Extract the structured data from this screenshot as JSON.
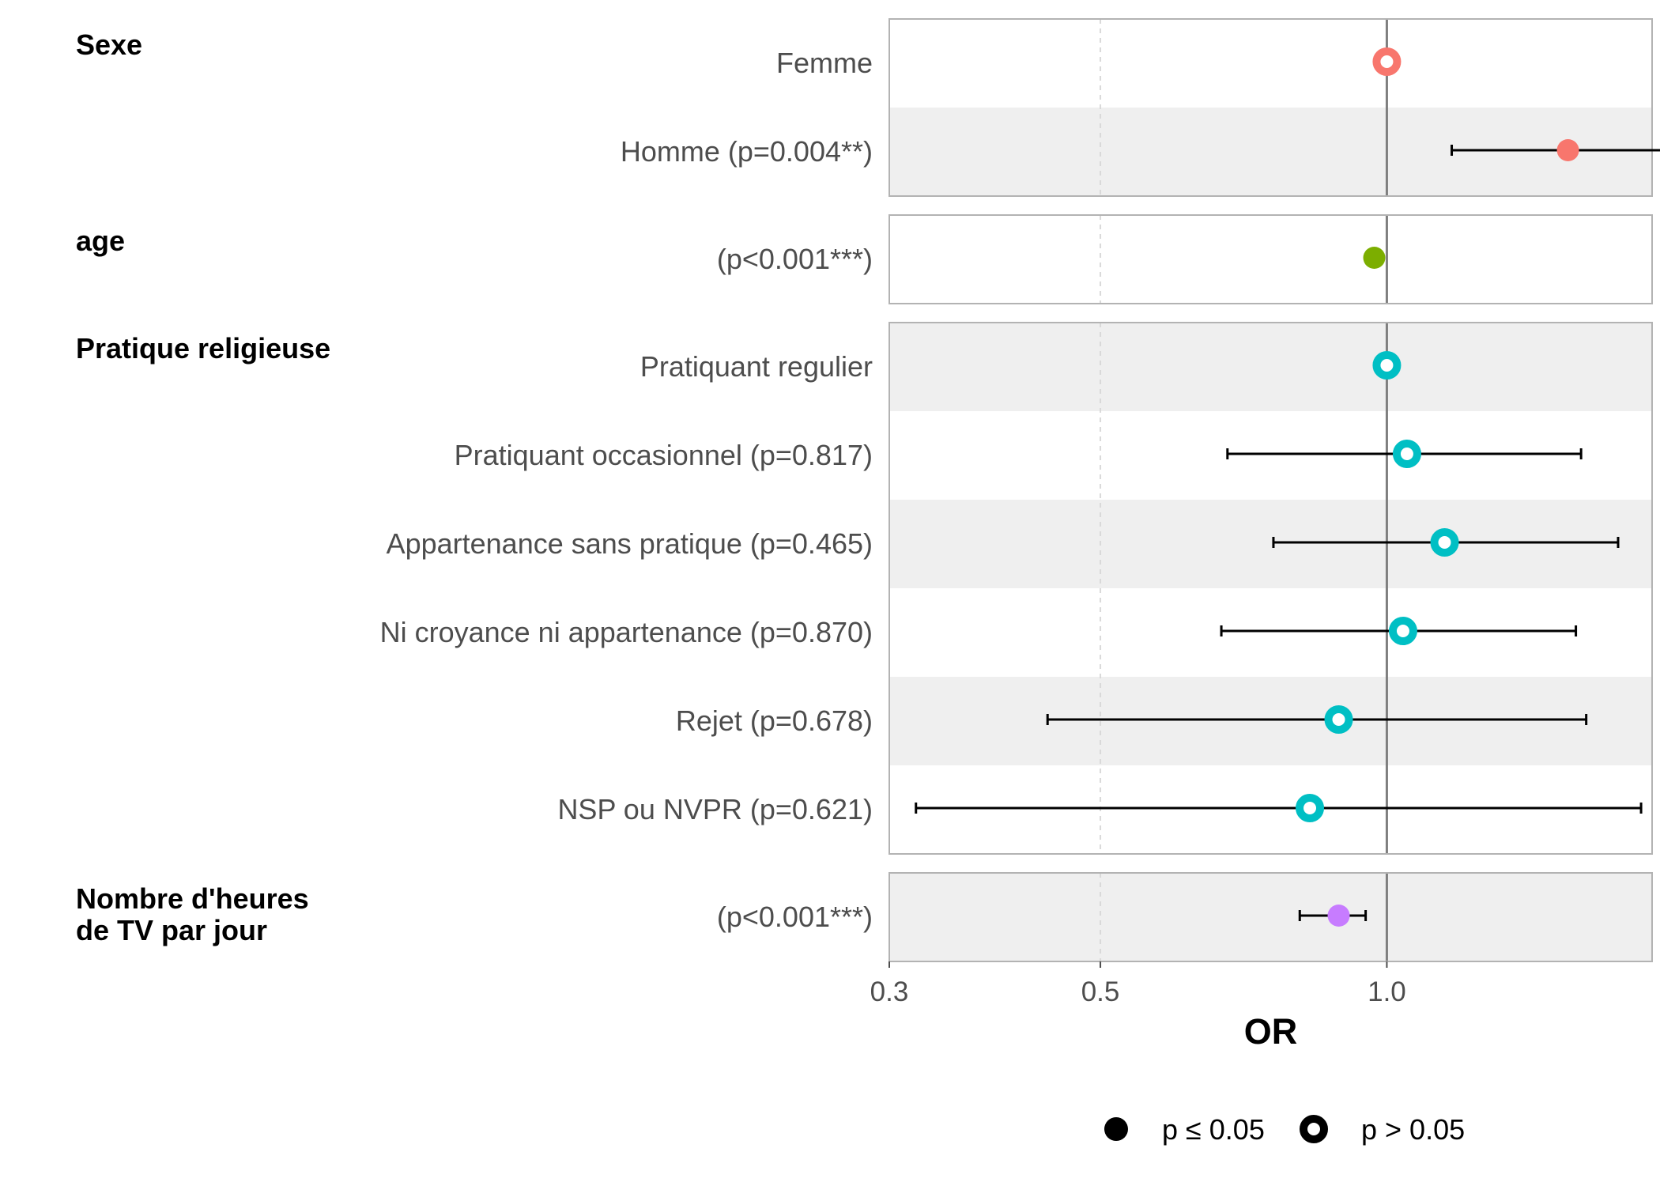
{
  "chart_data": {
    "type": "forest",
    "xlabel": "OR",
    "x_scale": "log",
    "xlim": [
      0.3,
      1.9
    ],
    "x_ticks": [
      {
        "value": 0.3,
        "label": "0.3"
      },
      {
        "value": 0.5,
        "label": "0.5"
      },
      {
        "value": 1.0,
        "label": "1.0"
      }
    ],
    "reference_value": 1.0,
    "significant_color_note": "filled = p ≤ 0.05, hollow = p > 0.05",
    "groups": [
      {
        "name": "Sexe",
        "color": "#F8766D",
        "terms": [
          {
            "label": "Femme",
            "or": 1.0,
            "low": null,
            "high": null,
            "significant": false
          },
          {
            "label": "Homme (p=0.004**)",
            "or": 1.55,
            "low": 1.17,
            "high": 2.05,
            "significant": true
          }
        ]
      },
      {
        "name": "age",
        "color": "#7CAE00",
        "terms": [
          {
            "label": "(p<0.001***)",
            "or": 0.97,
            "low": 0.96,
            "high": 0.98,
            "significant": true
          }
        ]
      },
      {
        "name": "Pratique religieuse",
        "color": "#00BFC4",
        "terms": [
          {
            "label": "Pratiquant regulier",
            "or": 1.0,
            "low": null,
            "high": null,
            "significant": false
          },
          {
            "label": "Pratiquant occasionnel (p=0.817)",
            "or": 1.05,
            "low": 0.68,
            "high": 1.6,
            "significant": false
          },
          {
            "label": "Appartenance sans pratique (p=0.465)",
            "or": 1.15,
            "low": 0.76,
            "high": 1.75,
            "significant": false
          },
          {
            "label": "Ni croyance ni appartenance (p=0.870)",
            "or": 1.04,
            "low": 0.67,
            "high": 1.58,
            "significant": false
          },
          {
            "label": "Rejet (p=0.678)",
            "or": 0.89,
            "low": 0.44,
            "high": 1.62,
            "significant": false
          },
          {
            "label": "NSP ou NVPR (p=0.621)",
            "or": 0.83,
            "low": 0.32,
            "high": 1.85,
            "significant": false
          }
        ]
      },
      {
        "name": "Nombre d'heures\nde TV par jour",
        "color": "#C77CFF",
        "terms": [
          {
            "label": "(p<0.001***)",
            "or": 0.89,
            "low": 0.81,
            "high": 0.95,
            "significant": true
          }
        ]
      }
    ],
    "legend": {
      "position": "bottom",
      "entries": [
        {
          "label": "p ≤ 0.05",
          "filled": true
        },
        {
          "label": "p > 0.05",
          "filled": false
        }
      ]
    }
  }
}
